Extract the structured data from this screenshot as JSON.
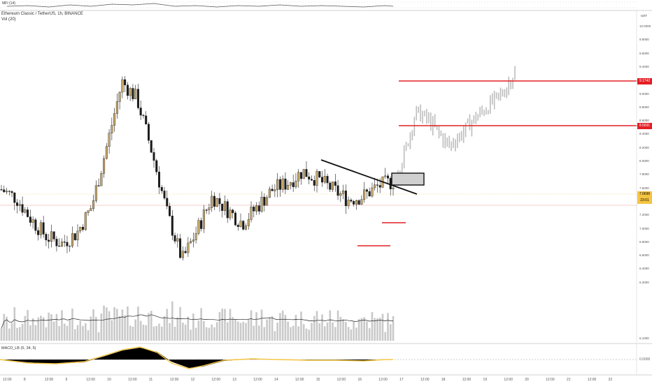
{
  "header": {
    "symbol_title": "Ethereum Classic / TetherUS, 1h, BINANCE",
    "volume_label": "Vol (20)",
    "top_indicator_label": "MFI (14)",
    "macd_label": "MACD_LB (5, 34, 5)"
  },
  "price_axis": {
    "ticks": [
      "10.0000",
      "9.8000",
      "9.6000",
      "9.4000",
      "9.2000",
      "9.0000",
      "8.8000",
      "8.6000",
      "8.4000",
      "8.2000",
      "8.0000",
      "7.8000",
      "7.6000",
      "7.4000",
      "7.2000",
      "7.0000",
      "6.8000",
      "6.6000",
      "6.4000",
      "6.2000",
      "6.1000"
    ],
    "top_value": "UST"
  },
  "price_labels": {
    "target_high": "9.1742",
    "target_mid": "8.5691",
    "current_price": "7.6696",
    "countdown": "23:01"
  },
  "macd_axis": {
    "zero": "0.0000"
  },
  "time_axis": [
    "12:00",
    "8",
    "12:00",
    "9",
    "12:00",
    "10",
    "12:00",
    "11",
    "12:00",
    "12",
    "12:00",
    "13",
    "12:00",
    "14",
    "12:00",
    "15",
    "12:00",
    "16",
    "12:00",
    "17",
    "12:00",
    "18",
    "12:00",
    "19",
    "12:00",
    "20",
    "12:00",
    "21",
    "12:00",
    "22"
  ],
  "colors": {
    "bull_candle": "#c8a96b",
    "bear_candle": "#1a1a1a",
    "projection": "#bdbdbd",
    "target_line": "#e31e24",
    "trend_line": "#111111",
    "volume_bar": "#c9c9c9",
    "macd_fill": "#000000",
    "macd_signal": "#f5c542"
  },
  "chart_data": {
    "type": "candlestick",
    "resistance_levels": [
      9.1742,
      8.5691
    ],
    "current_price": 7.6696,
    "support_marks": [
      7.35,
      7.1
    ],
    "approx_close_path": [
      7.55,
      7.42,
      7.1,
      6.85,
      6.75,
      6.9,
      7.3,
      8.2,
      9.15,
      8.9,
      8.1,
      7.2,
      6.5,
      6.95,
      7.45,
      7.25,
      7.05,
      7.3,
      7.55,
      7.65,
      7.82,
      7.7,
      7.55,
      7.4,
      7.45,
      7.6,
      7.67
    ],
    "projection_path": [
      7.67,
      8.1,
      8.7,
      8.6,
      8.4,
      8.2,
      8.35,
      8.55,
      8.7,
      8.85,
      9.0,
      9.3
    ]
  }
}
